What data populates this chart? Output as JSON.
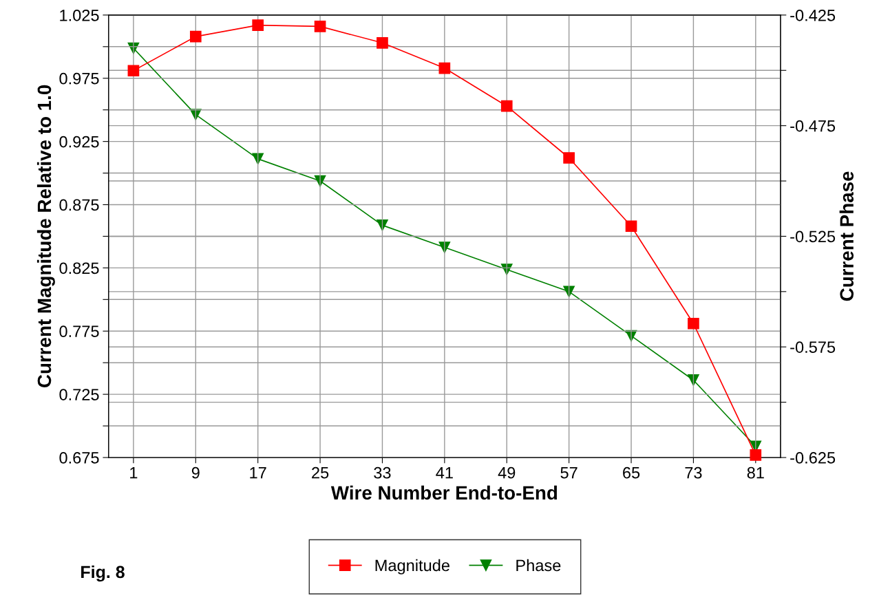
{
  "chart_data": {
    "type": "line",
    "xlabel": "Wire Number End-to-End",
    "ylabel": "Current Magnitude Relative to 1.0",
    "y2label": "Current Phase",
    "categories": [
      "1",
      "9",
      "17",
      "25",
      "33",
      "41",
      "49",
      "57",
      "65",
      "73",
      "81"
    ],
    "series": [
      {
        "name": "Magnitude",
        "color": "#ff0000",
        "marker": "square",
        "values": [
          0.981,
          1.008,
          1.017,
          1.016,
          1.003,
          0.983,
          0.953,
          0.912,
          0.858,
          0.781,
          0.677
        ]
      },
      {
        "name": "Phase",
        "color": "#008000",
        "marker": "triangle",
        "axis": "y2",
        "values": [
          -0.44,
          -0.47,
          -0.49,
          -0.5,
          -0.52,
          -0.53,
          -0.54,
          -0.55,
          -0.57,
          -0.59,
          -0.62
        ]
      }
    ],
    "ylim": [
      0.675,
      1.025
    ],
    "yticks": [
      0.675,
      {
        "value": 0.7,
        "label": null
      },
      0.725,
      {
        "value": 0.75,
        "label": null
      },
      0.775,
      {
        "value": 0.8,
        "label": null
      },
      0.825,
      {
        "value": 0.85,
        "label": null
      },
      0.875,
      {
        "value": 0.9,
        "label": null
      },
      0.925,
      {
        "value": 0.95,
        "label": null
      },
      0.975,
      {
        "value": 1.0,
        "label": null
      },
      1.025
    ],
    "y2lim": [
      -0.625,
      -0.425
    ],
    "y2ticks": [
      -0.625,
      {
        "value": -0.6,
        "label": null
      },
      -0.575,
      {
        "value": -0.55,
        "label": null
      },
      -0.525,
      {
        "value": -0.5,
        "label": null
      },
      -0.475,
      {
        "value": -0.45,
        "label": null
      },
      -0.425
    ],
    "grid": true,
    "legend": "bottom",
    "line_style": "solid",
    "annotations": [
      "Fig. 8"
    ]
  }
}
